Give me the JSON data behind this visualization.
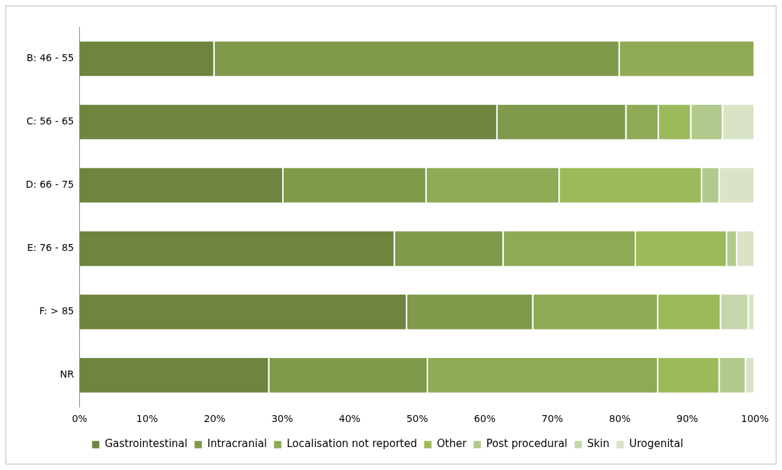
{
  "chart_data": {
    "type": "bar",
    "orientation": "horizontal",
    "stacked": true,
    "categories": [
      "B: 46 - 55",
      "C: 56 - 65",
      "D: 66 - 75",
      "E: 76 - 85",
      "F: > 85",
      "NR"
    ],
    "series": [
      {
        "name": "Gastrointestinal",
        "color": "#6e843f",
        "values": [
          20,
          61.9,
          30.2,
          46.7,
          48.5,
          28.1
        ]
      },
      {
        "name": "Intracranial",
        "color": "#7f9a4b",
        "values": [
          60,
          19.1,
          21.2,
          16.1,
          18.7,
          23.5
        ]
      },
      {
        "name": "Localisation not reported",
        "color": "#8eaa54",
        "values": [
          20,
          4.8,
          19.7,
          19.6,
          18.5,
          34.1
        ]
      },
      {
        "name": "Other",
        "color": "#9bba5a",
        "values": [
          0,
          4.8,
          21.1,
          13.5,
          9.3,
          9.1
        ]
      },
      {
        "name": "Post procedural",
        "color": "#b2c98c",
        "values": [
          0,
          4.7,
          2.6,
          1.5,
          0,
          3.9
        ]
      },
      {
        "name": "Skin",
        "color": "#c5d6ab",
        "values": [
          0,
          0,
          0,
          0,
          4.1,
          0
        ]
      },
      {
        "name": "Urogenital",
        "color": "#d8e4c5",
        "values": [
          0,
          4.7,
          5.2,
          2.6,
          0.9,
          1.3
        ]
      }
    ],
    "xlim": [
      0,
      100
    ],
    "xticks": [
      {
        "value": 0,
        "label": "0%"
      },
      {
        "value": 10,
        "label": "10%"
      },
      {
        "value": 20,
        "label": "20%"
      },
      {
        "value": 30,
        "label": "30%"
      },
      {
        "value": 40,
        "label": "40%"
      },
      {
        "value": 50,
        "label": "50%"
      },
      {
        "value": 60,
        "label": "60%"
      },
      {
        "value": 70,
        "label": "70%"
      },
      {
        "value": 80,
        "label": "80%"
      },
      {
        "value": 90,
        "label": "90%"
      },
      {
        "value": 100,
        "label": "100%"
      }
    ],
    "grid": false,
    "legend": "bottom"
  }
}
